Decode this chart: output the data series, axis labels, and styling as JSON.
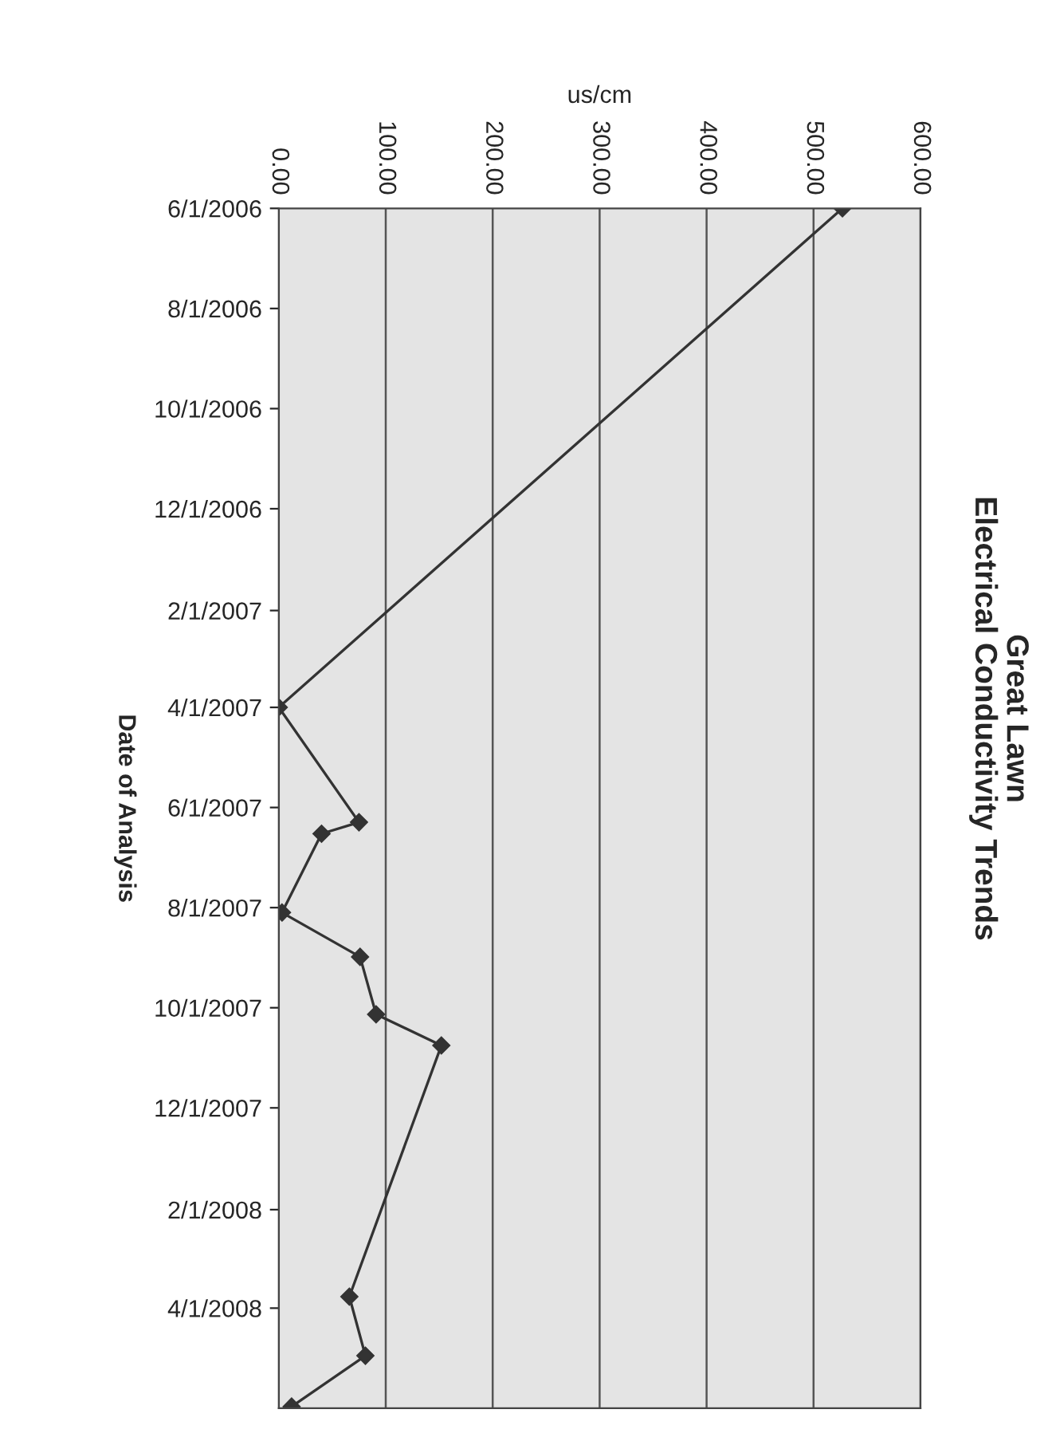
{
  "chart_data": {
    "type": "line",
    "orientation": "horizontal",
    "title": "Great Lawn",
    "subtitle": "Electrical Conductivity Trends",
    "xlabel": "us/cm",
    "ylabel": "Date of Analysis",
    "series": [
      {
        "color": "#333333",
        "x": [
          "2006-06-01",
          "2007-04-01",
          "2007-06-10",
          "2007-06-17",
          "2007-08-04",
          "2007-08-31",
          "2007-10-05",
          "2007-10-24",
          "2008-03-25",
          "2008-04-30",
          "2008-05-31"
        ],
        "values": [
          527,
          0,
          75,
          40,
          3,
          76,
          91,
          152,
          66,
          81,
          12
        ]
      }
    ],
    "xlim": [
      0,
      600
    ],
    "xticks": [
      {
        "value": 0,
        "label": "0.00"
      },
      {
        "value": 100,
        "label": "100.00"
      },
      {
        "value": 200,
        "label": "200.00"
      },
      {
        "value": 300,
        "label": "300.00"
      },
      {
        "value": 400,
        "label": "400.00"
      },
      {
        "value": 500,
        "label": "500.00"
      },
      {
        "value": 600,
        "label": "600.00"
      }
    ],
    "ylim": [
      "2008-06-01",
      "2006-06-01"
    ],
    "yticks": [
      {
        "value": "2006-06-01",
        "label": "6/1/2006"
      },
      {
        "value": "2006-08-01",
        "label": "8/1/2006"
      },
      {
        "value": "2006-10-01",
        "label": "10/1/2006"
      },
      {
        "value": "2006-12-01",
        "label": "12/1/2006"
      },
      {
        "value": "2007-02-01",
        "label": "2/1/2007"
      },
      {
        "value": "2007-04-01",
        "label": "4/1/2007"
      },
      {
        "value": "2007-06-01",
        "label": "6/1/2007"
      },
      {
        "value": "2007-08-01",
        "label": "8/1/2007"
      },
      {
        "value": "2007-10-01",
        "label": "10/1/2007"
      },
      {
        "value": "2007-12-01",
        "label": "12/1/2007"
      },
      {
        "value": "2008-02-01",
        "label": "2/1/2008"
      },
      {
        "value": "2008-04-01",
        "label": "4/1/2008"
      }
    ],
    "grid": "x",
    "marker": "diamond",
    "line_style": "solid"
  }
}
